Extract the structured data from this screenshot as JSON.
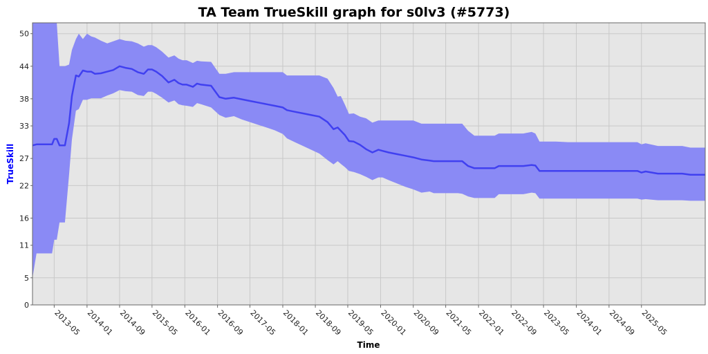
{
  "chart_data": {
    "type": "area",
    "title": "TA Team TrueSkill graph for s0lv3 (#5773)",
    "xlabel": "Time",
    "ylabel": "TrueSkill",
    "ylim": [
      0,
      52
    ],
    "xlim": [
      "2012-11-20",
      "2026-08-20"
    ],
    "yticks": [
      0,
      5,
      11,
      16,
      22,
      27,
      33,
      38,
      44,
      50
    ],
    "ytick_labels": [
      "0",
      "5",
      "11",
      "16",
      "22",
      "27",
      "33",
      "38",
      "44",
      "50"
    ],
    "xticks": [
      "2013-05",
      "2014-01",
      "2014-09",
      "2015-05",
      "2016-01",
      "2016-09",
      "2017-05",
      "2018-01",
      "2018-09",
      "2019-05",
      "2020-01",
      "2020-09",
      "2021-05",
      "2022-01",
      "2022-09",
      "2023-05",
      "2024-01",
      "2024-09",
      "2025-05"
    ],
    "grid": true,
    "colors": {
      "plot_background": "#e6e6e6",
      "band": "#8a8af5",
      "line": "#4040f0",
      "grid": "#c8c8c8",
      "ylabel": "#0000ff"
    },
    "series": [
      {
        "name": "TrueSkill",
        "x": [
          "2012-11-20",
          "2012-12-20",
          "2013-02-15",
          "2013-04-15",
          "2013-05-01",
          "2013-05-20",
          "2013-06-10",
          "2013-07-20",
          "2013-08-20",
          "2013-09-10",
          "2013-10-10",
          "2013-11-01",
          "2013-12-01",
          "2014-01-01",
          "2014-02-01",
          "2014-03-01",
          "2014-04-15",
          "2014-06-01",
          "2014-07-15",
          "2014-09-01",
          "2014-10-15",
          "2014-12-01",
          "2015-01-15",
          "2015-03-01",
          "2015-04-01",
          "2015-05-01",
          "2015-06-01",
          "2015-07-15",
          "2015-09-01",
          "2015-10-15",
          "2015-11-15",
          "2015-12-15",
          "2016-01-15",
          "2016-03-01",
          "2016-04-01",
          "2016-05-01",
          "2016-07-15",
          "2016-09-15",
          "2016-11-01",
          "2017-01-01",
          "2017-03-01",
          "2017-05-01",
          "2017-07-01",
          "2017-09-01",
          "2017-11-01",
          "2018-01-01",
          "2018-02-01",
          "2018-04-01",
          "2018-06-01",
          "2018-08-01",
          "2018-10-01",
          "2018-12-01",
          "2019-01-15",
          "2019-02-15",
          "2019-03-10",
          "2019-04-10",
          "2019-05-10",
          "2019-06-15",
          "2019-08-01",
          "2019-09-15",
          "2019-11-01",
          "2019-12-15",
          "2020-01-15",
          "2020-03-01",
          "2020-05-01",
          "2020-07-01",
          "2020-09-01",
          "2020-11-01",
          "2021-01-01",
          "2021-02-01",
          "2021-04-01",
          "2021-06-01",
          "2021-08-01",
          "2021-09-01",
          "2021-10-15",
          "2021-12-01",
          "2022-03-01",
          "2022-05-01",
          "2022-06-01",
          "2022-08-01",
          "2022-10-01",
          "2022-12-01",
          "2023-02-01",
          "2023-03-01",
          "2023-04-01",
          "2023-05-01",
          "2023-08-01",
          "2023-11-01",
          "2024-02-01",
          "2024-05-01",
          "2024-08-01",
          "2024-11-01",
          "2025-02-01",
          "2025-04-01",
          "2025-05-01",
          "2025-06-01",
          "2025-09-01",
          "2025-12-01",
          "2026-03-01",
          "2026-05-01",
          "2026-08-20"
        ],
        "values": [
          29.4,
          29.6,
          29.6,
          29.6,
          30.6,
          30.6,
          29.4,
          29.4,
          33.5,
          38.5,
          42.3,
          42.1,
          43.2,
          43.0,
          43.0,
          42.6,
          42.7,
          43.0,
          43.3,
          44.0,
          43.7,
          43.5,
          42.9,
          42.6,
          43.4,
          43.4,
          43.0,
          42.2,
          41.0,
          41.5,
          40.9,
          40.6,
          40.6,
          40.2,
          40.8,
          40.6,
          40.4,
          38.3,
          38.0,
          38.2,
          37.9,
          37.6,
          37.3,
          37.0,
          36.7,
          36.4,
          35.9,
          35.6,
          35.3,
          35.0,
          34.7,
          33.7,
          32.4,
          32.7,
          32.1,
          31.3,
          30.2,
          30.1,
          29.5,
          28.7,
          28.1,
          28.6,
          28.4,
          28.1,
          27.8,
          27.5,
          27.2,
          26.8,
          26.6,
          26.5,
          26.5,
          26.5,
          26.5,
          26.5,
          25.6,
          25.2,
          25.2,
          25.2,
          25.6,
          25.6,
          25.6,
          25.6,
          25.8,
          25.7,
          24.7,
          24.7,
          24.7,
          24.7,
          24.7,
          24.7,
          24.7,
          24.7,
          24.7,
          24.7,
          24.4,
          24.6,
          24.2,
          24.2,
          24.2,
          24.0,
          24.0
        ],
        "lower": [
          5.0,
          9.5,
          9.5,
          9.5,
          12.0,
          12.0,
          15.2,
          15.2,
          24.0,
          30.5,
          35.8,
          36.1,
          37.8,
          37.8,
          38.1,
          38.1,
          38.1,
          38.6,
          39.0,
          39.6,
          39.4,
          39.3,
          38.7,
          38.5,
          39.3,
          39.3,
          38.9,
          38.2,
          37.3,
          37.7,
          37.0,
          36.8,
          36.7,
          36.5,
          37.2,
          37.0,
          36.4,
          35.0,
          34.5,
          34.8,
          34.2,
          33.7,
          33.2,
          32.7,
          32.2,
          31.5,
          30.7,
          30.0,
          29.3,
          28.6,
          27.9,
          26.7,
          25.9,
          26.5,
          26.0,
          25.4,
          24.7,
          24.5,
          24.1,
          23.6,
          23.0,
          23.5,
          23.5,
          23.0,
          22.4,
          21.8,
          21.3,
          20.7,
          20.9,
          20.6,
          20.6,
          20.6,
          20.6,
          20.5,
          20.0,
          19.7,
          19.7,
          19.7,
          20.4,
          20.4,
          20.4,
          20.4,
          20.7,
          20.6,
          19.6,
          19.6,
          19.6,
          19.6,
          19.6,
          19.6,
          19.6,
          19.6,
          19.6,
          19.6,
          19.4,
          19.5,
          19.3,
          19.3,
          19.3,
          19.2,
          19.2
        ],
        "upper": [
          52.0,
          52.0,
          52.0,
          52.0,
          52.0,
          52.0,
          44.0,
          44.0,
          44.3,
          47.0,
          49.0,
          50.0,
          49.0,
          50.0,
          49.5,
          49.3,
          48.7,
          48.2,
          48.6,
          49.0,
          48.7,
          48.6,
          48.2,
          47.6,
          47.9,
          47.9,
          47.5,
          46.7,
          45.6,
          46.0,
          45.4,
          45.1,
          45.1,
          44.6,
          45.0,
          44.9,
          44.8,
          42.6,
          42.6,
          42.9,
          42.9,
          42.9,
          42.9,
          42.9,
          42.9,
          42.9,
          42.3,
          42.3,
          42.3,
          42.3,
          42.3,
          41.7,
          40.0,
          38.4,
          38.5,
          36.9,
          35.2,
          35.3,
          34.7,
          34.4,
          33.6,
          34.0,
          34.0,
          34.0,
          34.0,
          34.0,
          34.0,
          33.4,
          33.4,
          33.4,
          33.4,
          33.4,
          33.4,
          33.4,
          32.1,
          31.2,
          31.2,
          31.2,
          31.6,
          31.6,
          31.6,
          31.6,
          31.9,
          31.6,
          30.1,
          30.1,
          30.1,
          30.0,
          30.0,
          30.0,
          30.0,
          30.0,
          30.0,
          30.0,
          29.6,
          29.8,
          29.3,
          29.3,
          29.3,
          29.0,
          29.0
        ]
      }
    ]
  }
}
